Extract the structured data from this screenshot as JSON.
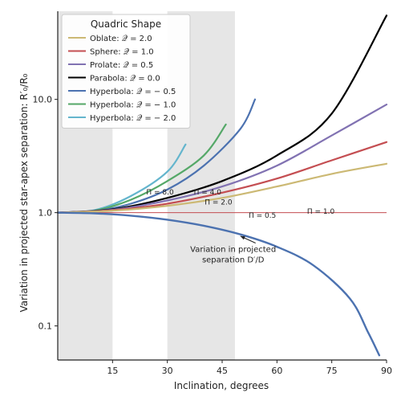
{
  "chart_data": {
    "type": "line",
    "xlabel": "Inclination, degrees",
    "ylabel": "Variation in projected star-apex separation: R′₀/R₀",
    "xlim": [
      0,
      90
    ],
    "ylim": [
      0.05,
      60
    ],
    "yscale": "log",
    "x_ticks": [
      15,
      30,
      45,
      60,
      75,
      90
    ],
    "x_tick_labels": [
      "15",
      "30",
      "45",
      "60",
      "75",
      "90"
    ],
    "y_ticks": [
      0.1,
      1.0,
      10.0
    ],
    "y_tick_labels": [
      "0.1",
      "1.0",
      "10.0"
    ],
    "shaded_bands": [
      [
        0,
        15
      ],
      [
        30,
        48.5
      ]
    ],
    "legend": {
      "title": "Quadric Shape",
      "position": "top-left",
      "entries": [
        {
          "label": "Oblate: 𝒬 = 2.0",
          "color": "#ccb974"
        },
        {
          "label": "Sphere: 𝒬 = 1.0",
          "color": "#c44e52"
        },
        {
          "label": "Prolate: 𝒬 = 0.5",
          "color": "#8172b2"
        },
        {
          "label": "Parabola: 𝒬 = 0.0",
          "color": "#000000"
        },
        {
          "label": "Hyperbola: 𝒬 = − 0.5",
          "color": "#4c72b0"
        },
        {
          "label": "Hyperbola: 𝒬 = − 1.0",
          "color": "#55a868"
        },
        {
          "label": "Hyperbola: 𝒬 = − 2.0",
          "color": "#64b5cd"
        }
      ]
    },
    "pi_labels": [
      {
        "text": "Π = 8.0",
        "x": 28,
        "y": 1.45
      },
      {
        "text": "Π = 4.0",
        "x": 41,
        "y": 1.45
      },
      {
        "text": "Π = 2.0",
        "x": 44,
        "y": 1.18
      },
      {
        "text": "Π = 1.0",
        "x": 72,
        "y": 0.98
      },
      {
        "text": "Π = 0.5",
        "x": 56,
        "y": 0.9
      }
    ],
    "annotation": {
      "text_lines": [
        "Variation in projected",
        "separation D′/D"
      ],
      "text_x": 48,
      "text_y": 0.45,
      "arrow_to_x": 50,
      "arrow_to_y": 0.62
    },
    "reference_line": {
      "y": 1.0,
      "color": "#c44e52"
    },
    "separation_curve": {
      "name": "D′/D",
      "color": "#4c72b0",
      "x": [
        0,
        10,
        20,
        30,
        40,
        50,
        60,
        70,
        80,
        85,
        88
      ],
      "y": [
        1.0,
        0.985,
        0.94,
        0.866,
        0.766,
        0.643,
        0.5,
        0.342,
        0.174,
        0.087,
        0.055
      ]
    },
    "series": [
      {
        "name": "Q=-2.0",
        "color": "#64b5cd",
        "x": [
          0,
          10,
          20,
          30,
          35
        ],
        "y": [
          1.0,
          1.05,
          1.4,
          2.3,
          4.0
        ]
      },
      {
        "name": "Q=-1.0",
        "color": "#55a868",
        "x": [
          0,
          10,
          20,
          30,
          40,
          46
        ],
        "y": [
          1.0,
          1.04,
          1.3,
          1.9,
          3.2,
          6.0
        ]
      },
      {
        "name": "Q=-0.5",
        "color": "#4c72b0",
        "x": [
          0,
          10,
          20,
          30,
          40,
          50,
          54
        ],
        "y": [
          1.0,
          1.03,
          1.2,
          1.6,
          2.6,
          5.5,
          10.0
        ]
      },
      {
        "name": "Q=0.0",
        "color": "#000000",
        "x": [
          0,
          15,
          30,
          45,
          60,
          75,
          90
        ],
        "y": [
          1.0,
          1.07,
          1.35,
          1.9,
          3.2,
          7.5,
          55.0
        ]
      },
      {
        "name": "Q=0.5",
        "color": "#8172b2",
        "x": [
          0,
          15,
          30,
          45,
          60,
          75,
          90
        ],
        "y": [
          1.0,
          1.06,
          1.28,
          1.7,
          2.6,
          4.8,
          9.0
        ]
      },
      {
        "name": "Q=1.0",
        "color": "#c44e52",
        "x": [
          0,
          15,
          30,
          45,
          60,
          75,
          90
        ],
        "y": [
          1.0,
          1.05,
          1.2,
          1.5,
          2.0,
          2.9,
          4.2
        ]
      },
      {
        "name": "Q=2.0",
        "color": "#ccb974",
        "x": [
          0,
          15,
          30,
          45,
          60,
          75,
          90
        ],
        "y": [
          1.0,
          1.04,
          1.15,
          1.35,
          1.7,
          2.2,
          2.7
        ]
      }
    ]
  }
}
